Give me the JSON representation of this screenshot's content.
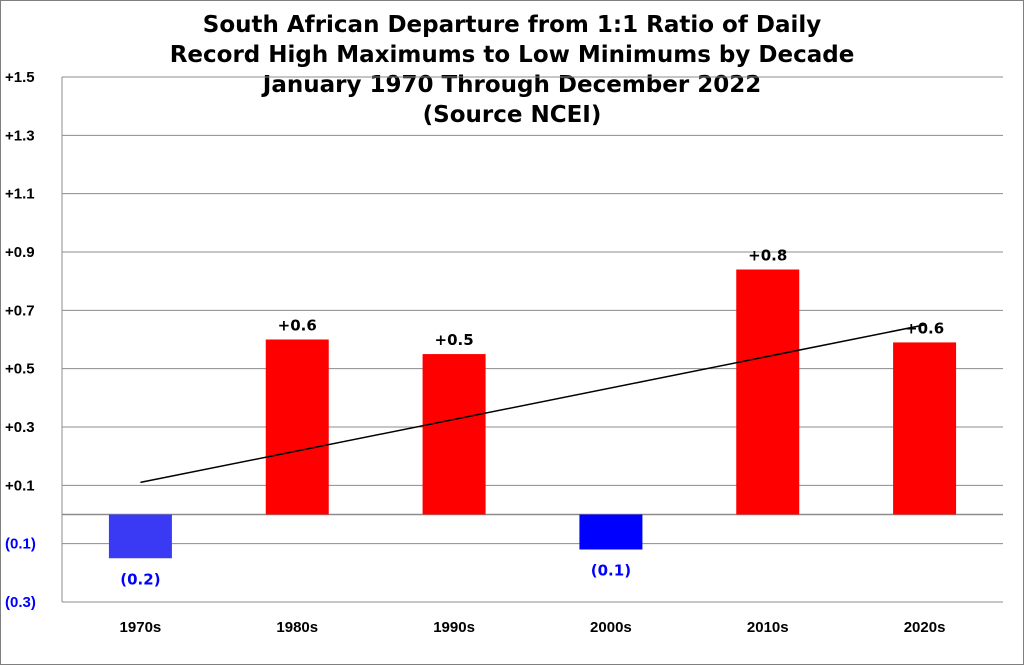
{
  "chart_data": {
    "type": "bar",
    "title_lines": [
      "South African Departure from 1:1 Ratio of Daily",
      "Record High Maximums to Low Minimums by Decade",
      "January 1970 Through December 2022",
      "(Source NCEI)"
    ],
    "categories": [
      "1970s",
      "1980s",
      "1990s",
      "2000s",
      "2010s",
      "2020s"
    ],
    "values": [
      -0.15,
      0.6,
      0.55,
      -0.12,
      0.84,
      0.59
    ],
    "data_labels": [
      "(0.2)",
      "+0.6",
      "+0.5",
      "(0.1)",
      "+0.8",
      "+0.6"
    ],
    "bar_colors": [
      "#3a3af5",
      "#ff0000",
      "#ff0000",
      "#0000ff",
      "#ff0000",
      "#ff0000"
    ],
    "ylim": [
      -0.3,
      1.5
    ],
    "yticks": [
      -0.3,
      -0.1,
      0.1,
      0.3,
      0.5,
      0.7,
      0.9,
      1.1,
      1.3,
      1.5
    ],
    "ytick_labels": [
      "(0.3)",
      "(0.1)",
      "+0.1",
      "+0.3",
      "+0.5",
      "+0.7",
      "+0.9",
      "+1.1",
      "+1.3",
      "+1.5"
    ],
    "positive_color": "#ff0000",
    "negative_color": "#0000ff",
    "trendline": {
      "start": 0.11,
      "end": 0.65,
      "color": "#000000"
    },
    "xlabel": "",
    "ylabel": "",
    "grid": true,
    "legend": "none"
  }
}
